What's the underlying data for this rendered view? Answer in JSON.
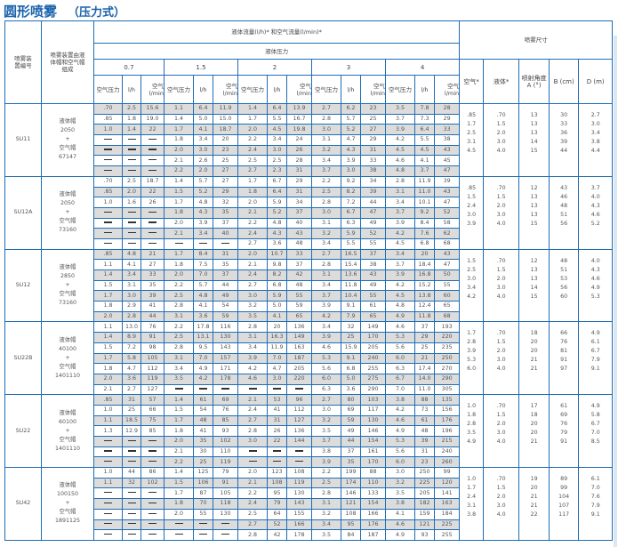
{
  "title": "圆形喷雾",
  "subtitle": "（压力式）",
  "header": {
    "col_id": "喷雾装置编号",
    "col_comp": "喷雾装置由液体帽和空气帽组成",
    "flow": "液体流量(l/h)* 和空气流量(l/min)*",
    "liquid_pressure": "液体压力",
    "spray_size": "喷雾尺寸",
    "pressures": [
      "0.7",
      "1.5",
      "2",
      "3",
      "4"
    ],
    "sub": {
      "air_pressure": "空气压力",
      "lh": "l/h",
      "air_lmin": "空气 l/min"
    },
    "size_cols": [
      "空气*",
      "液体*",
      "喷射角度 A (°)",
      "B (cm)",
      "D (m)"
    ]
  },
  "colors": {
    "border": "#1f6db3",
    "title": "#1a62ad",
    "shade": "#dcdcdc"
  },
  "blocks": [
    {
      "id": "SU11",
      "comp": [
        "液体帽",
        "2050",
        "+",
        "空气帽",
        "67147"
      ],
      "rows": [
        [
          ".70",
          "2.5",
          "15.6",
          "1.1",
          "6.4",
          "11.9",
          "1.4",
          "6.4",
          "13.9",
          "2.7",
          "6.2",
          "23",
          "3.5",
          "7.8",
          "28"
        ],
        [
          ".85",
          "1.8",
          "19.0",
          "1.4",
          "5.0",
          "15.0",
          "1.7",
          "5.5",
          "16.7",
          "2.8",
          "5.7",
          "25",
          "3.7",
          "7.3",
          "29"
        ],
        [
          "1.0",
          "1.4",
          "22",
          "1.7",
          "4.1",
          "18.7",
          "2.0",
          "4.5",
          "19.8",
          "3.0",
          "5.2",
          "27",
          "3.9",
          "6.4",
          "33"
        ],
        [
          "—",
          "—",
          "—",
          "1.8",
          "3.4",
          "20",
          "2.2",
          "3.4",
          "24",
          "3.1",
          "4.7",
          "29",
          "4.2",
          "5.5",
          "38"
        ],
        [
          "—",
          "—",
          "—",
          "2.0",
          "3.0",
          "23",
          "2.4",
          "3.0",
          "26",
          "3.2",
          "4.3",
          "31",
          "4.5",
          "4.5",
          "43"
        ],
        [
          "—",
          "—",
          "—",
          "2.1",
          "2.6",
          "25",
          "2.5",
          "2.5",
          "28",
          "3.4",
          "3.9",
          "33",
          "4.6",
          "4.1",
          "45"
        ],
        [
          "—",
          "—",
          "—",
          "2.2",
          "2.0",
          "27",
          "2.7",
          "2.3",
          "31",
          "3.7",
          "3.0",
          "38",
          "4.8",
          "3.7",
          "47"
        ]
      ],
      "size": {
        "air": [
          ".85",
          "1.7",
          "2.5",
          "3.1",
          "4.5"
        ],
        "liquid": [
          ".70",
          "1.5",
          "2.0",
          "3.0",
          "4.0"
        ],
        "angle": [
          "13",
          "13",
          "13",
          "14",
          "15"
        ],
        "b": [
          "30",
          "33",
          "36",
          "39",
          "44"
        ],
        "d": [
          "2.7",
          "3.0",
          "3.4",
          "3.8",
          "4.4"
        ]
      }
    },
    {
      "id": "SU12A",
      "comp": [
        "液体帽",
        "2050",
        "+",
        "空气帽",
        "73160"
      ],
      "rows": [
        [
          ".70",
          "2.5",
          "18.7",
          "1.4",
          "5.7",
          "27",
          "1.7",
          "6.7",
          "29",
          "2.2",
          "9.2",
          "34",
          "2.8",
          "11.9",
          "39"
        ],
        [
          ".85",
          "2.0",
          "22",
          "1.5",
          "5.2",
          "29",
          "1.8",
          "6.4",
          "31",
          "2.5",
          "8.2",
          "39",
          "3.1",
          "11.0",
          "43"
        ],
        [
          "1.0",
          "1.6",
          "26",
          "1.7",
          "4.8",
          "32",
          "2.0",
          "5.9",
          "34",
          "2.8",
          "7.2",
          "44",
          "3.4",
          "10.1",
          "47"
        ],
        [
          "—",
          "—",
          "—",
          "1.8",
          "4.3",
          "35",
          "2.1",
          "5.2",
          "37",
          "3.0",
          "6.7",
          "47",
          "3.7",
          "9.2",
          "52"
        ],
        [
          "—",
          "—",
          "—",
          "2.0",
          "3.9",
          "37",
          "2.2",
          "4.8",
          "40",
          "3.1",
          "6.3",
          "49",
          "3.9",
          "8.4",
          "58"
        ],
        [
          "—",
          "—",
          "—",
          "2.1",
          "3.4",
          "40",
          "2.4",
          "4.3",
          "43",
          "3.2",
          "5.9",
          "52",
          "4.2",
          "7.6",
          "62"
        ],
        [
          "—",
          "—",
          "—",
          "—",
          "—",
          "—",
          "2.7",
          "3.6",
          "48",
          "3.4",
          "5.5",
          "55",
          "4.5",
          "6.8",
          "68"
        ]
      ],
      "size": {
        "air": [
          ".85",
          "1.5",
          "2.4",
          "3.0",
          "3.9"
        ],
        "liquid": [
          ".70",
          "1.5",
          "2.0",
          "3.0",
          "4.0"
        ],
        "angle": [
          "12",
          "13",
          "13",
          "13",
          "15"
        ],
        "b": [
          "43",
          "46",
          "48",
          "51",
          "56"
        ],
        "d": [
          "3.7",
          "4.0",
          "4.3",
          "4.6",
          "5.2"
        ]
      }
    },
    {
      "id": "SU12",
      "comp": [
        "液体帽",
        "2850",
        "+",
        "空气帽",
        "73160"
      ],
      "rows": [
        [
          ".85",
          "4.8",
          "21",
          "1.7",
          "8.4",
          "31",
          "2.0",
          "10.7",
          "33",
          "2.7",
          "16.5",
          "37",
          "3.4",
          "20",
          "43"
        ],
        [
          "1.1",
          "4.1",
          "27",
          "1.8",
          "7.5",
          "35",
          "2.1",
          "9.8",
          "37",
          "2.8",
          "15.4",
          "38",
          "3.7",
          "18.4",
          "47"
        ],
        [
          "1.4",
          "3.4",
          "33",
          "2.0",
          "7.0",
          "37",
          "2.4",
          "8.2",
          "42",
          "3.1",
          "13.6",
          "43",
          "3.9",
          "16.8",
          "50"
        ],
        [
          "1.5",
          "3.1",
          "35",
          "2.2",
          "5.7",
          "44",
          "2.7",
          "6.8",
          "48",
          "3.4",
          "11.8",
          "49",
          "4.2",
          "15.2",
          "55"
        ],
        [
          "1.7",
          "3.0",
          "39",
          "2.5",
          "4.8",
          "49",
          "3.0",
          "5.9",
          "55",
          "3.7",
          "10.4",
          "55",
          "4.5",
          "13.8",
          "60"
        ],
        [
          "1.8",
          "2.9",
          "41",
          "2.8",
          "4.1",
          "54",
          "3.2",
          "5.0",
          "59",
          "3.9",
          "9.1",
          "61",
          "4.8",
          "12.4",
          "65"
        ],
        [
          "2.0",
          "2.8",
          "44",
          "3.1",
          "3.6",
          "59",
          "3.5",
          "4.1",
          "65",
          "4.2",
          "7.9",
          "65",
          "4.9",
          "11.8",
          "68"
        ]
      ],
      "size": {
        "air": [
          "1.5",
          "2.5",
          "3.0",
          "3.4",
          "4.2"
        ],
        "liquid": [
          ".70",
          "1.5",
          "2.0",
          "3.0",
          "4.0"
        ],
        "angle": [
          "12",
          "13",
          "13",
          "14",
          "15"
        ],
        "b": [
          "48",
          "51",
          "53",
          "56",
          "60"
        ],
        "d": [
          "4.0",
          "4.3",
          "4.6",
          "4.9",
          "5.3"
        ]
      }
    },
    {
      "id": "SU22B",
      "comp": [
        "液体帽",
        "40100",
        "+",
        "空气帽",
        "1401110"
      ],
      "rows": [
        [
          "1.1",
          "13.0",
          "76",
          "2.2",
          "17.8",
          "116",
          "2.8",
          "20",
          "136",
          "3.4",
          "32",
          "149",
          "4.6",
          "37",
          "193"
        ],
        [
          "1.4",
          "8.9",
          "91",
          "2.5",
          "13.1",
          "130",
          "3.1",
          "16.3",
          "149",
          "3.9",
          "25",
          "170",
          "5.3",
          "29",
          "220"
        ],
        [
          "1.5",
          "7.2",
          "98",
          "2.8",
          "9.5",
          "143",
          "3.4",
          "11.9",
          "163",
          "4.6",
          "15.9",
          "205",
          "5.6",
          "25",
          "235"
        ],
        [
          "1.7",
          "5.8",
          "105",
          "3.1",
          "7.0",
          "157",
          "3.9",
          "7.0",
          "187",
          "5.3",
          "9.1",
          "240",
          "6.0",
          "21",
          "250"
        ],
        [
          "1.8",
          "4.7",
          "112",
          "3.4",
          "4.9",
          "171",
          "4.2",
          "4.7",
          "205",
          "5.6",
          "6.8",
          "255",
          "6.3",
          "17.4",
          "270"
        ],
        [
          "2.0",
          "3.6",
          "119",
          "3.5",
          "4.2",
          "178",
          "4.6",
          "3.0",
          "220",
          "6.0",
          "5.0",
          "275",
          "6.7",
          "14.0",
          "290"
        ],
        [
          "2.1",
          "2.7",
          "127",
          "—",
          "—",
          "—",
          "—",
          "—",
          "—",
          "6.3",
          "3.6",
          "290",
          "7.0",
          "11.0",
          "305"
        ]
      ],
      "size": {
        "air": [
          "1.7",
          "2.8",
          "3.9",
          "5.3",
          "6.0"
        ],
        "liquid": [
          ".70",
          "1.5",
          "2.0",
          "3.0",
          "4.0"
        ],
        "angle": [
          "18",
          "20",
          "20",
          "21",
          "21"
        ],
        "b": [
          "66",
          "76",
          "81",
          "91",
          "97"
        ],
        "d": [
          "4.9",
          "6.1",
          "6.7",
          "7.9",
          "9.1"
        ]
      }
    },
    {
      "id": "SU22",
      "comp": [
        "液体帽",
        "60100",
        "+",
        "空气帽",
        "1401110"
      ],
      "rows": [
        [
          ".85",
          "31",
          "57",
          "1.4",
          "61",
          "69",
          "2.1",
          "53",
          "96",
          "2.7",
          "80",
          "103",
          "3.8",
          "88",
          "135"
        ],
        [
          "1.0",
          "25",
          "66",
          "1.5",
          "54",
          "76",
          "2.4",
          "41",
          "112",
          "3.0",
          "69",
          "117",
          "4.2",
          "73",
          "156"
        ],
        [
          "1.1",
          "18.5",
          "75",
          "1.7",
          "48",
          "85",
          "2.7",
          "31",
          "127",
          "3.2",
          "59",
          "130",
          "4.6",
          "61",
          "176"
        ],
        [
          "1.3",
          "12.9",
          "85",
          "1.8",
          "41",
          "93",
          "2.8",
          "26",
          "136",
          "3.5",
          "49",
          "146",
          "4.9",
          "48",
          "196"
        ],
        [
          "—",
          "—",
          "—",
          "2.0",
          "35",
          "102",
          "3.0",
          "22",
          "144",
          "3.7",
          "44",
          "154",
          "5.3",
          "39",
          "215"
        ],
        [
          "—",
          "—",
          "—",
          "2.1",
          "30",
          "110",
          "—",
          "—",
          "—",
          "3.8",
          "37",
          "161",
          "5.6",
          "31",
          "240"
        ],
        [
          "—",
          "—",
          "—",
          "2.2",
          "25",
          "119",
          "—",
          "—",
          "—",
          "3.9",
          "35",
          "170",
          "6.0",
          "23",
          "260"
        ]
      ],
      "size": {
        "air": [
          "1.0",
          "1.8",
          "2.8",
          "3.5",
          "4.9"
        ],
        "liquid": [
          ".70",
          "1.5",
          "2.0",
          "3.0",
          "4.0"
        ],
        "angle": [
          "17",
          "18",
          "20",
          "20",
          "21"
        ],
        "b": [
          "61",
          "69",
          "76",
          "79",
          "91"
        ],
        "d": [
          "4.9",
          "5.8",
          "6.7",
          "7.0",
          "8.5"
        ]
      }
    },
    {
      "id": "SU42",
      "comp": [
        "液体帽",
        "100150",
        "+",
        "空气帽",
        "1891125"
      ],
      "rows": [
        [
          "1.0",
          "44",
          "86",
          "1.4",
          "125",
          "79",
          "2.0",
          "123",
          "108",
          "2.2",
          "199",
          "88",
          "3.0",
          "250",
          "99"
        ],
        [
          "1.1",
          "32",
          "102",
          "1.5",
          "106",
          "91",
          "2.1",
          "108",
          "119",
          "2.5",
          "174",
          "110",
          "3.2",
          "225",
          "120"
        ],
        [
          "—",
          "—",
          "—",
          "1.7",
          "87",
          "105",
          "2.2",
          "95",
          "130",
          "2.8",
          "146",
          "133",
          "3.5",
          "205",
          "141"
        ],
        [
          "—",
          "—",
          "—",
          "1.8",
          "70",
          "118",
          "2.4",
          "79",
          "143",
          "3.1",
          "121",
          "154",
          "3.8",
          "182",
          "163"
        ],
        [
          "—",
          "—",
          "—",
          "2.0",
          "55",
          "130",
          "2.5",
          "64",
          "155",
          "3.2",
          "108",
          "166",
          "4.1",
          "159",
          "184"
        ],
        [
          "—",
          "—",
          "—",
          "—",
          "—",
          "—",
          "2.7",
          "52",
          "166",
          "3.4",
          "95",
          "176",
          "4.6",
          "121",
          "225"
        ],
        [
          "—",
          "—",
          "—",
          "—",
          "—",
          "—",
          "2.8",
          "42",
          "178",
          "3.5",
          "84",
          "187",
          "4.9",
          "93",
          "255"
        ]
      ],
      "size": {
        "air": [
          "1.0",
          "1.7",
          "2.4",
          "3.1",
          "3.8"
        ],
        "liquid": [
          ".70",
          "1.5",
          "2.0",
          "3.0",
          "4.0"
        ],
        "angle": [
          "19",
          "20",
          "21",
          "21",
          "22"
        ],
        "b": [
          "89",
          "99",
          "104",
          "107",
          "117"
        ],
        "d": [
          "6.1",
          "7.0",
          "7.6",
          "7.9",
          "9.1"
        ]
      }
    }
  ]
}
